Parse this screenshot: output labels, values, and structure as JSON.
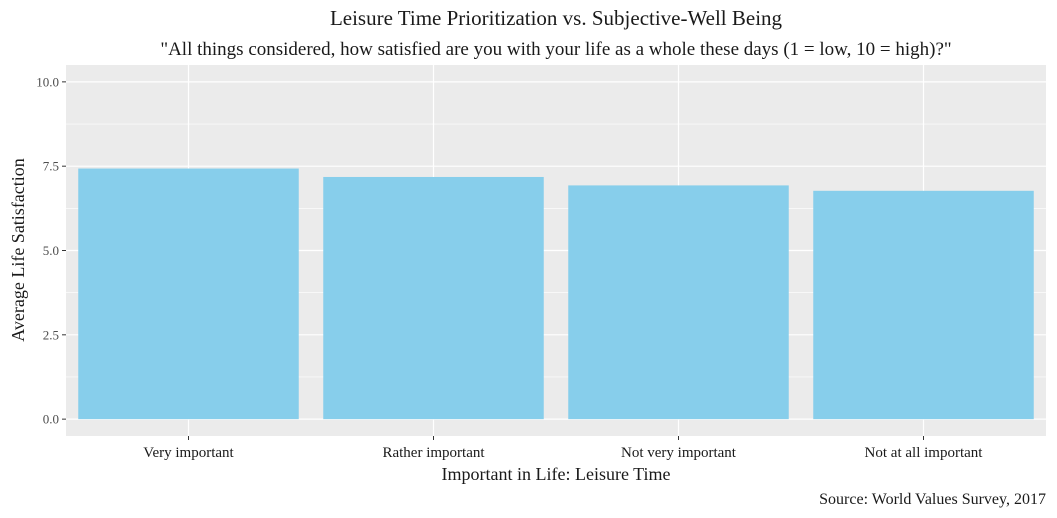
{
  "chart_data": {
    "type": "bar",
    "title": "Leisure Time Prioritization vs. Subjective-Well Being",
    "subtitle": "\"All things considered, how satisfied are you with your life as a whole these days (1 = low, 10 = high)?\"",
    "xlabel": "Important in Life: Leisure Time",
    "ylabel": "Average Life Satisfaction",
    "caption": "Source: World Values Survey, 2017",
    "categories": [
      "Very important",
      "Rather important",
      "Not very important",
      "Not at all important"
    ],
    "values": [
      7.43,
      7.18,
      6.93,
      6.77
    ],
    "ylim": [
      -0.5,
      10.5
    ],
    "yticks": [
      0.0,
      2.5,
      5.0,
      7.5,
      10.0
    ],
    "ytick_labels": [
      "0.0",
      "2.5",
      "5.0",
      "7.5",
      "10.0"
    ],
    "bar_color": "#87CEEB",
    "panel_background": "#EBEBEB",
    "grid": true,
    "legend": "none"
  }
}
